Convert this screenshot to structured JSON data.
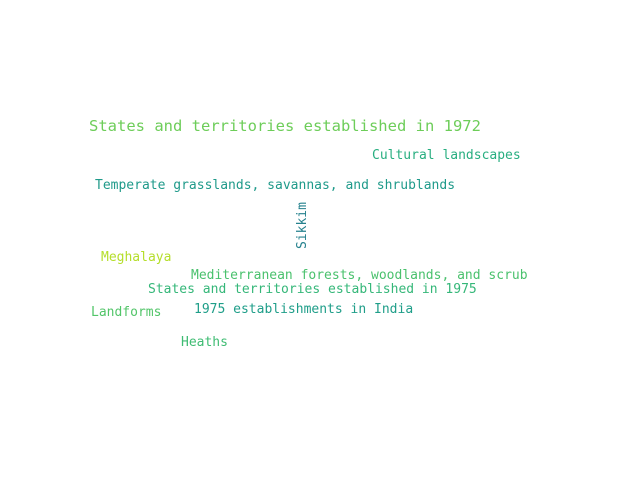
{
  "words": [
    {
      "id": "w-1972",
      "text": "States and territories established in 1972",
      "color": "#6dcd59"
    },
    {
      "id": "w-cultural",
      "text": "Cultural landscapes",
      "color": "#28ae80"
    },
    {
      "id": "w-temperate",
      "text": "Temperate grasslands, savannas, and shrublands",
      "color": "#1f9a8a"
    },
    {
      "id": "w-sikkim",
      "text": "Sikkim",
      "color": "#26828e"
    },
    {
      "id": "w-meghalaya",
      "text": "Meghalaya",
      "color": "#b5de2b"
    },
    {
      "id": "w-mediterranean",
      "text": "Mediterranean forests, woodlands, and scrub",
      "color": "#4ac16d"
    },
    {
      "id": "w-1975",
      "text": "States and territories established in 1975",
      "color": "#35b779"
    },
    {
      "id": "w-landforms",
      "text": "Landforms",
      "color": "#52c569"
    },
    {
      "id": "w-1975est",
      "text": "1975 establishments in India",
      "color": "#1f9e89"
    },
    {
      "id": "w-heaths",
      "text": "Heaths",
      "color": "#3fbc73"
    }
  ]
}
